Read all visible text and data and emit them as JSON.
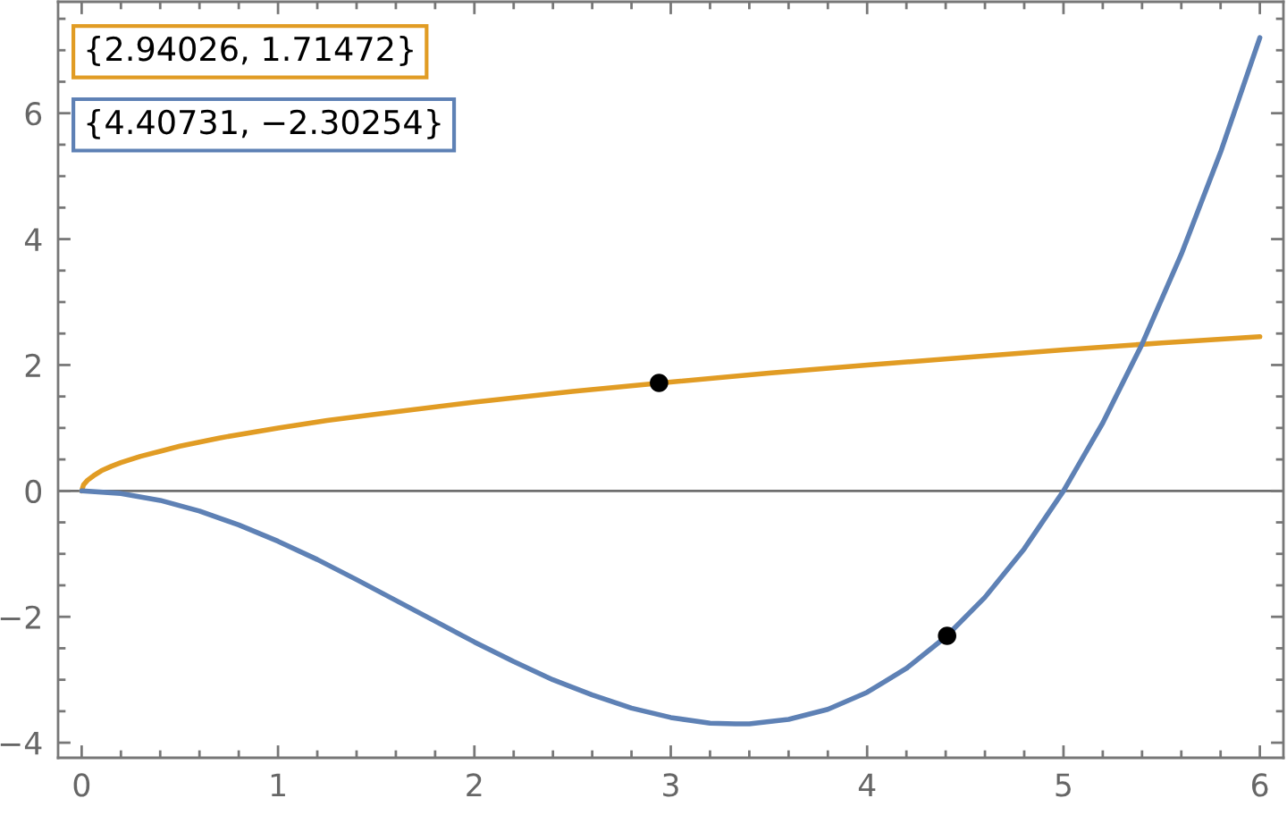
{
  "chart_data": {
    "type": "line",
    "annotations": [
      "{2.94026, 1.71472}",
      "{4.40731, −2.30254}"
    ],
    "series": [
      {
        "color": "#e19c24",
        "x": [
          0,
          0.01,
          0.03,
          0.06,
          0.1,
          0.15,
          0.2,
          0.3,
          0.4,
          0.5,
          0.7,
          1,
          1.25,
          1.5,
          2,
          2.5,
          3,
          3.5,
          4,
          4.5,
          5,
          5.5,
          6
        ],
        "values": [
          0,
          0.1,
          0.17,
          0.24,
          0.32,
          0.39,
          0.45,
          0.55,
          0.63,
          0.71,
          0.84,
          1,
          1.12,
          1.22,
          1.41,
          1.58,
          1.73,
          1.87,
          2,
          2.12,
          2.24,
          2.35,
          2.45
        ]
      },
      {
        "color": "#5e81b5",
        "x": [
          0,
          0.2,
          0.4,
          0.6,
          0.8,
          1,
          1.2,
          1.4,
          1.6,
          1.8,
          2,
          2.2,
          2.4,
          2.6,
          2.8,
          3,
          3.2,
          3.33,
          3.4,
          3.6,
          3.8,
          4,
          4.2,
          4.4,
          4.6,
          4.8,
          5,
          5.2,
          5.4,
          5.6,
          5.8,
          6
        ],
        "values": [
          0,
          -0.04,
          -0.15,
          -0.32,
          -0.54,
          -0.8,
          -1.09,
          -1.41,
          -1.74,
          -2.07,
          -2.4,
          -2.71,
          -3.0,
          -3.24,
          -3.45,
          -3.6,
          -3.69,
          -3.7,
          -3.7,
          -3.63,
          -3.47,
          -3.2,
          -2.82,
          -2.32,
          -1.69,
          -0.92,
          0,
          1.08,
          2.33,
          3.76,
          5.38,
          7.2
        ]
      },
      {
        "type": "scatter",
        "color": "#000000",
        "marker": "circle",
        "x": [
          2.94026,
          4.40731
        ],
        "values": [
          1.71472,
          -2.30254
        ]
      }
    ],
    "xlim": [
      -0.12,
      6.12
    ],
    "ylim": [
      -4.24,
      7.77
    ],
    "xticks": [
      0,
      {
        "value": 0.2,
        "label": null
      },
      {
        "value": 0.4,
        "label": null
      },
      {
        "value": 0.6,
        "label": null
      },
      {
        "value": 0.8,
        "label": null
      },
      1,
      {
        "value": 1.2,
        "label": null
      },
      {
        "value": 1.4,
        "label": null
      },
      {
        "value": 1.6,
        "label": null
      },
      {
        "value": 1.8,
        "label": null
      },
      2,
      {
        "value": 2.2,
        "label": null
      },
      {
        "value": 2.4,
        "label": null
      },
      {
        "value": 2.6,
        "label": null
      },
      {
        "value": 2.8,
        "label": null
      },
      3,
      {
        "value": 3.2,
        "label": null
      },
      {
        "value": 3.4,
        "label": null
      },
      {
        "value": 3.6,
        "label": null
      },
      {
        "value": 3.8,
        "label": null
      },
      4,
      {
        "value": 4.2,
        "label": null
      },
      {
        "value": 4.4,
        "label": null
      },
      {
        "value": 4.6,
        "label": null
      },
      {
        "value": 4.8,
        "label": null
      },
      5,
      {
        "value": 5.2,
        "label": null
      },
      {
        "value": 5.4,
        "label": null
      },
      {
        "value": 5.6,
        "label": null
      },
      {
        "value": 5.8,
        "label": null
      },
      6
    ],
    "yticks": [
      {
        "value": -4,
        "label": "−4"
      },
      {
        "value": -3.5,
        "label": null
      },
      {
        "value": -3,
        "label": null
      },
      {
        "value": -2.5,
        "label": null
      },
      {
        "value": -2,
        "label": "−2"
      },
      {
        "value": -1.5,
        "label": null
      },
      {
        "value": -1,
        "label": null
      },
      {
        "value": -0.5,
        "label": null
      },
      0,
      {
        "value": 0.5,
        "label": null
      },
      {
        "value": 1,
        "label": null
      },
      {
        "value": 1.5,
        "label": null
      },
      2,
      {
        "value": 2.5,
        "label": null
      },
      {
        "value": 3,
        "label": null
      },
      {
        "value": 3.5,
        "label": null
      },
      4,
      {
        "value": 4.5,
        "label": null
      },
      {
        "value": 5,
        "label": null
      },
      {
        "value": 5.5,
        "label": null
      },
      6,
      {
        "value": 6.5,
        "label": null
      },
      {
        "value": 7,
        "label": null
      },
      {
        "value": 7.5,
        "label": null
      }
    ],
    "ref_lines": [
      {
        "axis": "y",
        "value": 0,
        "color": "#6e6e6e"
      }
    ],
    "grid": false,
    "legend": false
  }
}
